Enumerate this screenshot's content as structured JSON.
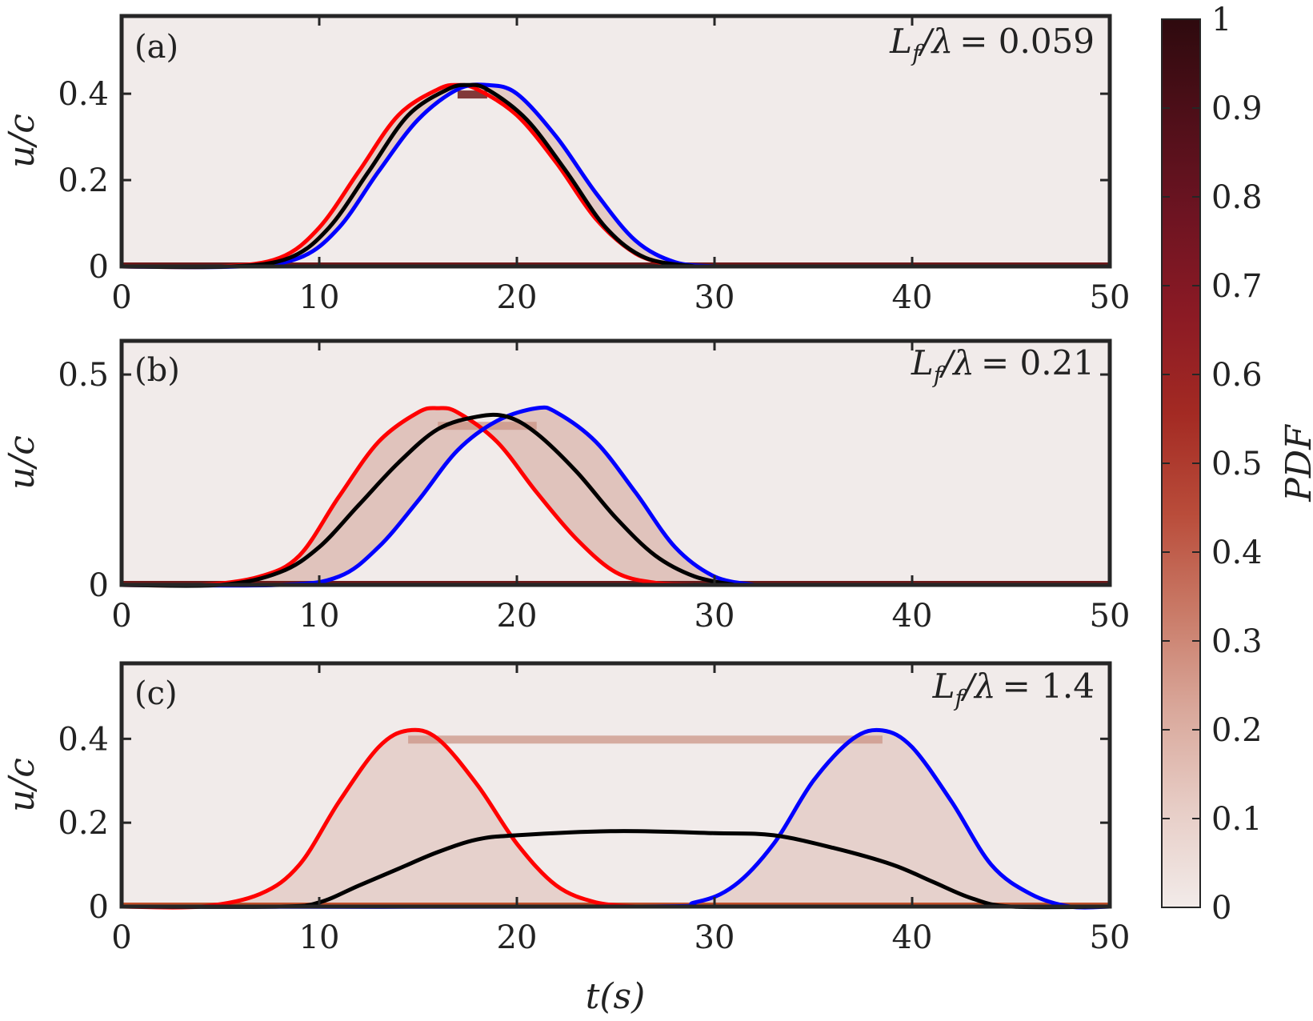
{
  "chart_data": [
    {
      "type": "line",
      "panel_label": "(a)",
      "annotation": {
        "lhs": "L",
        "sub": "f",
        "rest": "/λ",
        "value": "= 0.059"
      },
      "ylabel": "u/c",
      "xlim": [
        0,
        50
      ],
      "ylim": [
        0,
        0.58
      ],
      "xticks": [
        "0",
        "10",
        "20",
        "30",
        "40",
        "50"
      ],
      "yticks": [
        {
          "v": 0,
          "label": "0"
        },
        {
          "v": 0.2,
          "label": "0.2"
        },
        {
          "v": 0.4,
          "label": "0.4"
        }
      ],
      "series": [
        {
          "color": "#ff0000",
          "points": [
            [
              0,
              0
            ],
            [
              5,
              0
            ],
            [
              8,
              0.02
            ],
            [
              10,
              0.09
            ],
            [
              12,
              0.22
            ],
            [
              14,
              0.35
            ],
            [
              16,
              0.41
            ],
            [
              17,
              0.42
            ],
            [
              18,
              0.41
            ],
            [
              20,
              0.35
            ],
            [
              22,
              0.24
            ],
            [
              24,
              0.11
            ],
            [
              26,
              0.03
            ],
            [
              28,
              0
            ]
          ]
        },
        {
          "color": "#0000ff",
          "points": [
            [
              0,
              0
            ],
            [
              6,
              0
            ],
            [
              9,
              0.02
            ],
            [
              11,
              0.09
            ],
            [
              13,
              0.22
            ],
            [
              15,
              0.34
            ],
            [
              17,
              0.41
            ],
            [
              18.5,
              0.42
            ],
            [
              20,
              0.4
            ],
            [
              22,
              0.3
            ],
            [
              24,
              0.17
            ],
            [
              26,
              0.06
            ],
            [
              28,
              0.01
            ],
            [
              30,
              0
            ]
          ]
        },
        {
          "color": "#000000",
          "points": [
            [
              0,
              0
            ],
            [
              5.5,
              0
            ],
            [
              8.5,
              0.02
            ],
            [
              10.5,
              0.09
            ],
            [
              12.5,
              0.22
            ],
            [
              14.5,
              0.35
            ],
            [
              16.5,
              0.41
            ],
            [
              17.5,
              0.42
            ],
            [
              18.5,
              0.41
            ],
            [
              20.5,
              0.34
            ],
            [
              22.5,
              0.22
            ],
            [
              24.5,
              0.09
            ],
            [
              26.5,
              0.02
            ],
            [
              29,
              0
            ]
          ]
        }
      ],
      "pdf_band": {
        "peak_value": 0.4,
        "spread": 0.5
      }
    },
    {
      "type": "line",
      "panel_label": "(b)",
      "annotation": {
        "lhs": "L",
        "sub": "f",
        "rest": "/λ",
        "value": "= 0.21"
      },
      "ylabel": "u/c",
      "xlim": [
        0,
        50
      ],
      "ylim": [
        0,
        0.58
      ],
      "xticks": [
        "0",
        "10",
        "20",
        "30",
        "40",
        "50"
      ],
      "yticks": [
        {
          "v": 0,
          "label": "0"
        },
        {
          "v": 0.5,
          "label": "0.5"
        }
      ],
      "series": [
        {
          "color": "#ff0000",
          "points": [
            [
              0,
              0
            ],
            [
              4,
              0
            ],
            [
              7,
              0.02
            ],
            [
              9,
              0.07
            ],
            [
              11,
              0.21
            ],
            [
              13,
              0.34
            ],
            [
              15,
              0.41
            ],
            [
              16,
              0.42
            ],
            [
              17,
              0.41
            ],
            [
              19,
              0.34
            ],
            [
              21,
              0.22
            ],
            [
              23,
              0.11
            ],
            [
              25,
              0.03
            ],
            [
              27,
              0.005
            ],
            [
              29,
              0
            ]
          ]
        },
        {
          "color": "#0000ff",
          "points": [
            [
              0,
              0
            ],
            [
              8,
              0
            ],
            [
              11,
              0.02
            ],
            [
              13,
              0.09
            ],
            [
              15,
              0.2
            ],
            [
              17,
              0.32
            ],
            [
              19,
              0.39
            ],
            [
              21,
              0.42
            ],
            [
              22,
              0.41
            ],
            [
              24,
              0.34
            ],
            [
              26,
              0.22
            ],
            [
              28,
              0.09
            ],
            [
              30,
              0.02
            ],
            [
              32,
              0
            ]
          ]
        },
        {
          "color": "#000000",
          "points": [
            [
              0,
              0
            ],
            [
              5,
              0
            ],
            [
              8,
              0.03
            ],
            [
              10,
              0.09
            ],
            [
              12,
              0.19
            ],
            [
              14,
              0.29
            ],
            [
              16,
              0.37
            ],
            [
              18,
              0.4
            ],
            [
              19.5,
              0.4
            ],
            [
              21,
              0.36
            ],
            [
              23,
              0.27
            ],
            [
              25,
              0.16
            ],
            [
              27,
              0.07
            ],
            [
              29,
              0.02
            ],
            [
              31,
              0
            ]
          ]
        }
      ],
      "pdf_band": {
        "peak_value": 0.38,
        "spread": 1.0
      }
    },
    {
      "type": "line",
      "panel_label": "(c)",
      "annotation": {
        "lhs": "L",
        "sub": "f",
        "rest": "/λ",
        "value": "= 1.4"
      },
      "ylabel": "u/c",
      "xlabel": "t(s)",
      "xlim": [
        0,
        50
      ],
      "ylim": [
        0,
        0.58
      ],
      "xticks": [
        "0",
        "10",
        "20",
        "30",
        "40",
        "50"
      ],
      "yticks": [
        {
          "v": 0,
          "label": "0"
        },
        {
          "v": 0.2,
          "label": "0.2"
        },
        {
          "v": 0.4,
          "label": "0.4"
        }
      ],
      "series": [
        {
          "color": "#ff0000",
          "points": [
            [
              0,
              0
            ],
            [
              4,
              0
            ],
            [
              7,
              0.03
            ],
            [
              9,
              0.1
            ],
            [
              11,
              0.25
            ],
            [
              13,
              0.38
            ],
            [
              14.5,
              0.42
            ],
            [
              16,
              0.4
            ],
            [
              18,
              0.29
            ],
            [
              20,
              0.15
            ],
            [
              22,
              0.05
            ],
            [
              24,
              0.01
            ],
            [
              26,
              0
            ]
          ]
        },
        {
          "color": "#0000ff",
          "points": [
            [
              0,
              0
            ],
            [
              26,
              0
            ],
            [
              29,
              0.01
            ],
            [
              31,
              0.05
            ],
            [
              33,
              0.15
            ],
            [
              35,
              0.3
            ],
            [
              37,
              0.4
            ],
            [
              38.5,
              0.42
            ],
            [
              40,
              0.38
            ],
            [
              42,
              0.25
            ],
            [
              44,
              0.1
            ],
            [
              46,
              0.03
            ],
            [
              48,
              0
            ],
            [
              50,
              0
            ]
          ]
        },
        {
          "color": "#000000",
          "points": [
            [
              0,
              0
            ],
            [
              8,
              0
            ],
            [
              10,
              0.01
            ],
            [
              12,
              0.05
            ],
            [
              14,
              0.09
            ],
            [
              16,
              0.13
            ],
            [
              18,
              0.16
            ],
            [
              20,
              0.17
            ],
            [
              25,
              0.18
            ],
            [
              30,
              0.175
            ],
            [
              33,
              0.17
            ],
            [
              36,
              0.14
            ],
            [
              39,
              0.1
            ],
            [
              41,
              0.06
            ],
            [
              43,
              0.02
            ],
            [
              45,
              0
            ],
            [
              50,
              0
            ]
          ]
        }
      ],
      "pdf_band": {
        "peak_value": 0.4,
        "spread": 0.15
      }
    }
  ],
  "colorbar": {
    "label": "PDF",
    "ticks": [
      "0",
      "0.1",
      "0.2",
      "0.3",
      "0.4",
      "0.5",
      "0.6",
      "0.7",
      "0.8",
      "0.9",
      "1"
    ],
    "colors": [
      "#f2ebe9",
      "#e7cdc6",
      "#d9a89b",
      "#c97a67",
      "#b94c3a",
      "#a32a23",
      "#8b1a24",
      "#6e1422",
      "#4f0f19",
      "#2e0a0e"
    ]
  }
}
